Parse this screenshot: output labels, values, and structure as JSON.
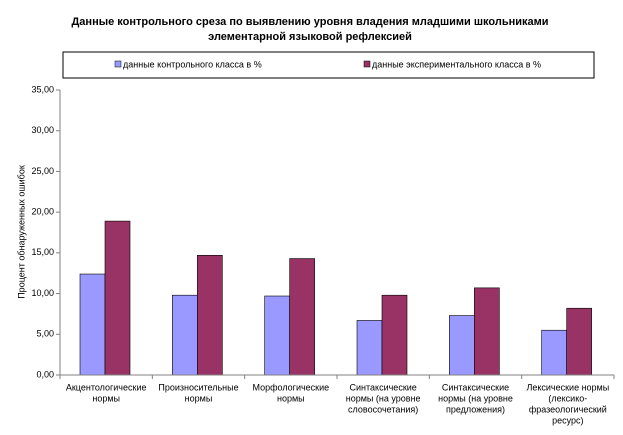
{
  "chart_data": {
    "type": "bar",
    "title": [
      "Данные контрольного среза по выявлению уровня владения младшими школьниками",
      "элементарной языковой рефлексией"
    ],
    "y_label": "Процент обнаруженных ошибок",
    "categories": [
      [
        "Акцентологические",
        "нормы"
      ],
      [
        "Произносительные",
        "нормы"
      ],
      [
        "Морфологические",
        "нормы"
      ],
      [
        "Синтаксические",
        "нормы (на уровне",
        "словосочетания)"
      ],
      [
        "Синтаксические",
        "нормы (на уровне",
        "предложения)"
      ],
      [
        "Лексические нормы",
        "(лексико-",
        "фразеологический",
        "ресурс)"
      ]
    ],
    "series": [
      {
        "name": "данные контрольного класса в %",
        "color": "#9999ff",
        "values": [
          12.4,
          9.8,
          9.7,
          6.7,
          7.3,
          5.5
        ]
      },
      {
        "name": "данные экспериментального класса в  %",
        "color": "#993366",
        "values": [
          18.9,
          14.7,
          14.3,
          9.8,
          10.7,
          8.2
        ]
      }
    ],
    "ylim": [
      0,
      35
    ],
    "yticks": [
      {
        "value": 0,
        "label": "0,00"
      },
      {
        "value": 5,
        "label": "5,00"
      },
      {
        "value": 10,
        "label": "10,00"
      },
      {
        "value": 15,
        "label": "15,00"
      },
      {
        "value": 20,
        "label": "20,00"
      },
      {
        "value": 25,
        "label": "25,00"
      },
      {
        "value": 30,
        "label": "30,00"
      },
      {
        "value": 35,
        "label": "35,00"
      }
    ],
    "grid": false,
    "legend": "top"
  }
}
